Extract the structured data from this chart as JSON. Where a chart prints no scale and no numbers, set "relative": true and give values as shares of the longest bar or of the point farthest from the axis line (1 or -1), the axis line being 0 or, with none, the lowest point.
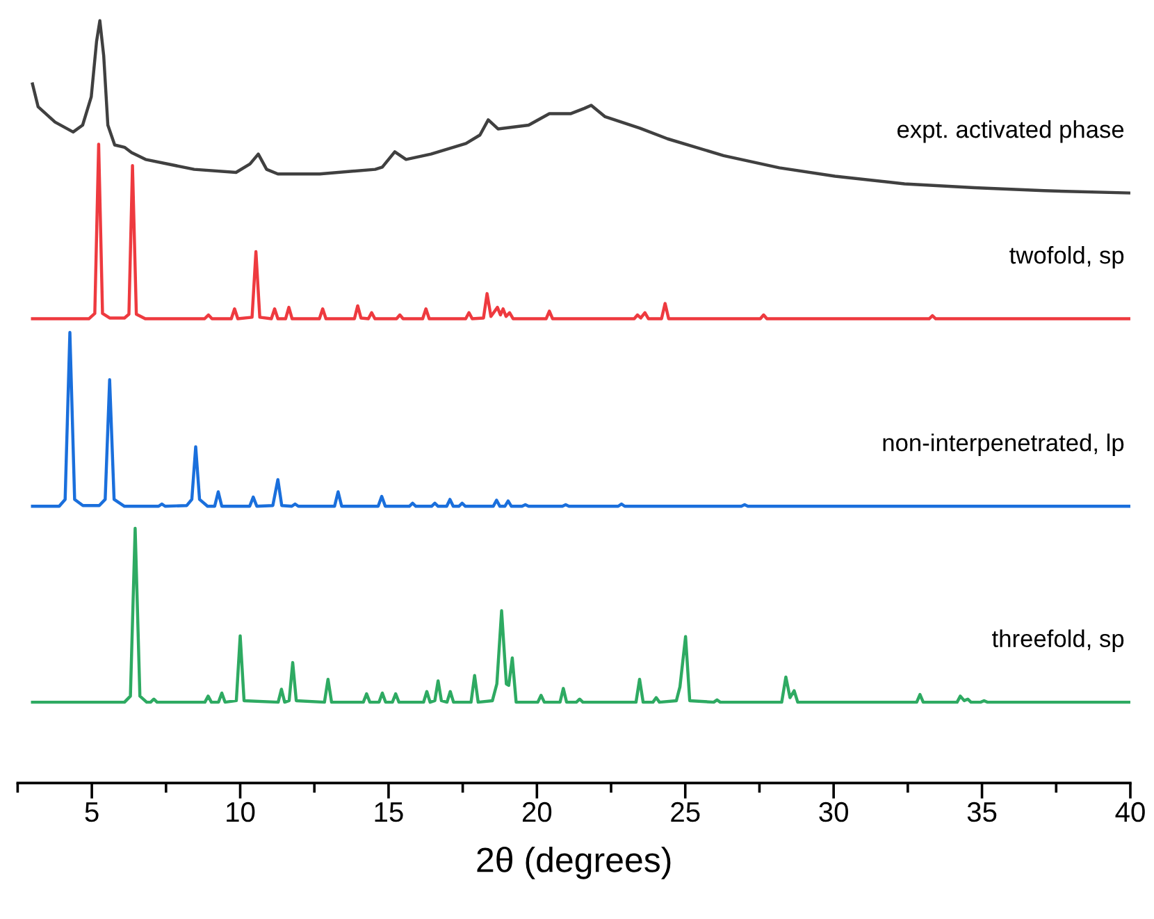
{
  "chart_data": {
    "type": "line",
    "relative": true,
    "xlabel": "2θ (degrees)",
    "xlim": [
      2.5,
      40
    ],
    "xticks": [
      {
        "value": 2.5,
        "label": null
      },
      5,
      {
        "value": 7.5,
        "label": null
      },
      10,
      {
        "value": 12.5,
        "label": null
      },
      15,
      {
        "value": 17.5,
        "label": null
      },
      20,
      {
        "value": 22.5,
        "label": null
      },
      25,
      {
        "value": 27.5,
        "label": null
      },
      30,
      {
        "value": 32.5,
        "label": null
      },
      35,
      {
        "value": 37.5,
        "label": null
      },
      40
    ],
    "grid": false,
    "legend": false,
    "marker": "none",
    "line_style": "solid",
    "tick_labels": "x",
    "series": [
      {
        "name": "expt. activated phase",
        "color": "#404040",
        "x": [
          3.0,
          3.19,
          3.76,
          4.37,
          4.69,
          4.98,
          5.16,
          5.27,
          5.4,
          5.54,
          5.77,
          6.1,
          6.34,
          6.81,
          8.45,
          9.86,
          10.33,
          10.61,
          10.89,
          11.27,
          12.68,
          14.55,
          14.79,
          15.21,
          15.59,
          16.43,
          17.61,
          18.08,
          18.36,
          18.69,
          19.72,
          20.42,
          21.13,
          21.6,
          21.83,
          22.3,
          23.47,
          24.41,
          26.29,
          28.17,
          30.05,
          32.39,
          34.74,
          37.09,
          40.0
        ],
        "values": [
          0.917,
          0.887,
          0.867,
          0.854,
          0.863,
          0.9,
          0.973,
          1.0,
          0.954,
          0.863,
          0.837,
          0.834,
          0.827,
          0.818,
          0.805,
          0.801,
          0.812,
          0.825,
          0.805,
          0.799,
          0.799,
          0.805,
          0.808,
          0.828,
          0.818,
          0.825,
          0.839,
          0.85,
          0.87,
          0.858,
          0.863,
          0.878,
          0.878,
          0.885,
          0.889,
          0.874,
          0.859,
          0.845,
          0.823,
          0.807,
          0.796,
          0.786,
          0.781,
          0.777,
          0.774
        ]
      },
      {
        "name": "twofold, sp",
        "color": "#ee3a3f",
        "x": [
          3.0,
          4.9,
          5.1,
          5.23,
          5.36,
          5.6,
          6.1,
          6.25,
          6.37,
          6.5,
          6.8,
          8.8,
          8.93,
          9.05,
          9.7,
          9.81,
          9.92,
          10.4,
          10.53,
          10.66,
          11.05,
          11.16,
          11.27,
          11.53,
          11.64,
          11.75,
          12.67,
          12.78,
          12.89,
          13.85,
          13.96,
          14.07,
          14.32,
          14.43,
          14.54,
          15.27,
          15.38,
          15.49,
          16.15,
          16.26,
          16.37,
          17.6,
          17.71,
          17.82,
          18.2,
          18.32,
          18.45,
          18.67,
          18.77,
          18.86,
          18.96,
          19.08,
          19.2,
          20.31,
          20.42,
          20.53,
          23.28,
          23.39,
          23.5,
          23.64,
          23.76,
          24.2,
          24.32,
          24.44,
          27.53,
          27.64,
          27.75,
          33.22,
          33.33,
          33.44,
          40.0
        ],
        "values": [
          0.609,
          0.609,
          0.616,
          0.838,
          0.616,
          0.61,
          0.61,
          0.615,
          0.81,
          0.615,
          0.609,
          0.609,
          0.614,
          0.609,
          0.609,
          0.622,
          0.609,
          0.611,
          0.697,
          0.611,
          0.609,
          0.622,
          0.609,
          0.609,
          0.624,
          0.609,
          0.609,
          0.622,
          0.609,
          0.609,
          0.626,
          0.61,
          0.609,
          0.617,
          0.609,
          0.609,
          0.614,
          0.609,
          0.609,
          0.622,
          0.609,
          0.609,
          0.617,
          0.609,
          0.61,
          0.642,
          0.612,
          0.624,
          0.614,
          0.622,
          0.612,
          0.617,
          0.609,
          0.609,
          0.619,
          0.609,
          0.609,
          0.614,
          0.61,
          0.617,
          0.609,
          0.609,
          0.629,
          0.609,
          0.609,
          0.614,
          0.609,
          0.609,
          0.613,
          0.609,
          0.609
        ]
      },
      {
        "name": "non-interpenetrated, lp",
        "color": "#1a6fdc",
        "x": [
          3.0,
          3.9,
          4.1,
          4.26,
          4.42,
          4.7,
          5.25,
          5.45,
          5.6,
          5.75,
          6.1,
          7.25,
          7.36,
          7.47,
          8.2,
          8.37,
          8.5,
          8.63,
          8.9,
          9.14,
          9.26,
          9.38,
          10.32,
          10.44,
          10.56,
          11.1,
          11.27,
          11.4,
          11.74,
          11.85,
          11.96,
          13.18,
          13.3,
          13.42,
          14.65,
          14.77,
          14.89,
          15.7,
          15.81,
          15.92,
          16.45,
          16.56,
          16.67,
          16.96,
          17.07,
          17.18,
          17.37,
          17.48,
          17.59,
          18.53,
          18.64,
          18.75,
          18.92,
          19.03,
          19.14,
          19.5,
          19.61,
          19.72,
          20.86,
          20.97,
          21.08,
          22.74,
          22.85,
          22.96,
          26.89,
          27.0,
          27.11,
          40.0
        ],
        "values": [
          0.363,
          0.363,
          0.372,
          0.591,
          0.372,
          0.364,
          0.364,
          0.372,
          0.529,
          0.372,
          0.363,
          0.363,
          0.366,
          0.363,
          0.364,
          0.372,
          0.441,
          0.372,
          0.363,
          0.363,
          0.382,
          0.363,
          0.363,
          0.375,
          0.363,
          0.364,
          0.398,
          0.364,
          0.363,
          0.366,
          0.363,
          0.363,
          0.382,
          0.363,
          0.363,
          0.376,
          0.363,
          0.363,
          0.367,
          0.363,
          0.363,
          0.367,
          0.363,
          0.363,
          0.372,
          0.363,
          0.363,
          0.367,
          0.363,
          0.363,
          0.371,
          0.363,
          0.363,
          0.37,
          0.363,
          0.363,
          0.365,
          0.363,
          0.363,
          0.365,
          0.363,
          0.363,
          0.366,
          0.363,
          0.363,
          0.365,
          0.363,
          0.363
        ]
      },
      {
        "name": "threefold, sp",
        "color": "#2eaa62",
        "x": [
          3.0,
          6.1,
          6.3,
          6.46,
          6.62,
          6.85,
          6.98,
          7.09,
          7.2,
          8.81,
          8.92,
          9.03,
          9.27,
          9.38,
          9.49,
          9.87,
          10.0,
          10.13,
          11.28,
          11.39,
          11.5,
          11.65,
          11.77,
          11.89,
          12.84,
          12.96,
          13.08,
          14.15,
          14.26,
          14.37,
          14.68,
          14.79,
          14.9,
          15.13,
          15.24,
          15.35,
          16.18,
          16.29,
          16.4,
          16.56,
          16.67,
          16.78,
          16.97,
          17.08,
          17.19,
          17.78,
          17.9,
          18.02,
          18.5,
          18.65,
          18.81,
          18.97,
          19.05,
          19.17,
          19.3,
          20.03,
          20.14,
          20.25,
          20.78,
          20.89,
          21.0,
          21.33,
          21.44,
          21.55,
          23.34,
          23.46,
          23.58,
          23.91,
          24.02,
          24.13,
          24.7,
          24.82,
          25.01,
          25.15,
          25.96,
          26.07,
          26.18,
          28.25,
          28.39,
          28.53,
          28.67,
          28.79,
          32.8,
          32.91,
          33.02,
          34.16,
          34.27,
          34.4,
          34.52,
          34.63,
          34.96,
          35.07,
          35.18,
          40.0
        ],
        "values": [
          0.106,
          0.106,
          0.114,
          0.334,
          0.114,
          0.106,
          0.106,
          0.11,
          0.106,
          0.106,
          0.114,
          0.106,
          0.106,
          0.118,
          0.106,
          0.108,
          0.193,
          0.108,
          0.106,
          0.123,
          0.106,
          0.108,
          0.158,
          0.108,
          0.106,
          0.136,
          0.106,
          0.106,
          0.117,
          0.106,
          0.106,
          0.118,
          0.106,
          0.106,
          0.117,
          0.106,
          0.106,
          0.12,
          0.106,
          0.108,
          0.134,
          0.108,
          0.106,
          0.12,
          0.106,
          0.106,
          0.141,
          0.106,
          0.108,
          0.13,
          0.226,
          0.13,
          0.128,
          0.164,
          0.106,
          0.106,
          0.115,
          0.106,
          0.106,
          0.124,
          0.106,
          0.106,
          0.11,
          0.106,
          0.106,
          0.136,
          0.106,
          0.106,
          0.112,
          0.106,
          0.108,
          0.126,
          0.192,
          0.108,
          0.106,
          0.109,
          0.106,
          0.106,
          0.139,
          0.112,
          0.121,
          0.106,
          0.106,
          0.116,
          0.106,
          0.106,
          0.114,
          0.108,
          0.11,
          0.106,
          0.106,
          0.108,
          0.106,
          0.106
        ]
      }
    ]
  }
}
